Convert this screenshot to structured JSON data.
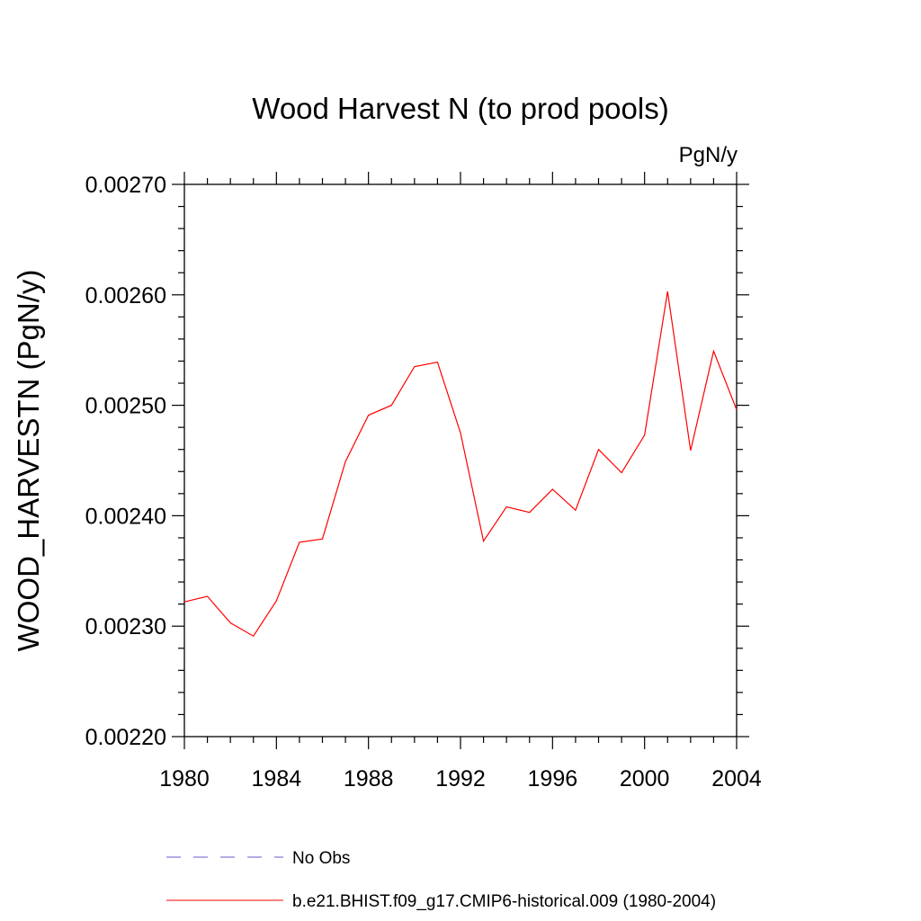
{
  "chart_data": {
    "type": "line",
    "title": "Wood Harvest N (to prod pools)",
    "units": "PgN/y",
    "xlabel": "",
    "ylabel": "WOOD_HARVESTN  (PgN/y)",
    "xlim": [
      1980,
      2004
    ],
    "ylim": [
      0.0022,
      0.0027
    ],
    "x_ticks": [
      1980,
      1984,
      1988,
      1992,
      1996,
      2000,
      2004
    ],
    "x_tick_labels": [
      "1980",
      "1984",
      "1988",
      "1992",
      "1996",
      "2000",
      "2004"
    ],
    "y_ticks": [
      0.0022,
      0.0023,
      0.0024,
      0.0025,
      0.0026,
      0.0027
    ],
    "y_tick_labels": [
      "0.00220",
      "0.00230",
      "0.00240",
      "0.00250",
      "0.00260",
      "0.00270"
    ],
    "x": [
      1980,
      1981,
      1982,
      1983,
      1984,
      1985,
      1986,
      1987,
      1988,
      1989,
      1990,
      1991,
      1992,
      1993,
      1994,
      1995,
      1996,
      1997,
      1998,
      1999,
      2000,
      2001,
      2002,
      2003,
      2004
    ],
    "series": [
      {
        "name": "b.e21.BHIST.f09_g17.CMIP6-historical.009 (1980-2004)",
        "color": "#ff0000",
        "values": [
          0.002322,
          0.002327,
          0.002303,
          0.002291,
          0.002323,
          0.002376,
          0.002379,
          0.002449,
          0.002491,
          0.0025,
          0.002535,
          0.002539,
          0.002475,
          0.002377,
          0.002408,
          0.002403,
          0.002424,
          0.002405,
          0.00246,
          0.002439,
          0.002473,
          0.002603,
          0.002459,
          0.002549,
          0.002496
        ]
      }
    ],
    "legend": {
      "placement": "bottom",
      "entries": [
        {
          "label": "No Obs",
          "color": "#6a5acd",
          "style": "dashed"
        },
        {
          "label": "b.e21.BHIST.f09_g17.CMIP6-historical.009 (1980-2004)",
          "color": "#ff0000",
          "style": "solid"
        }
      ]
    },
    "grid": false
  }
}
